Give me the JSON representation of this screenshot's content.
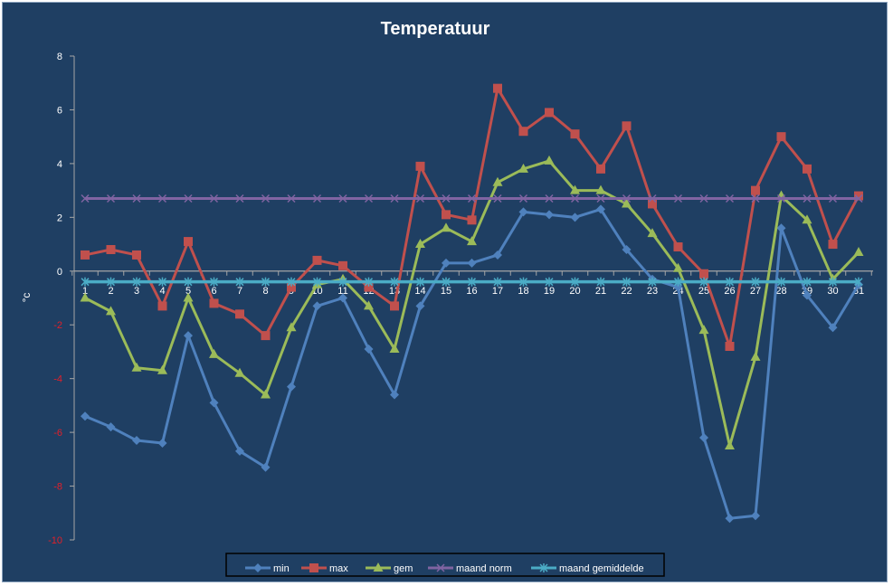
{
  "chart_data": {
    "type": "line",
    "title": "Temperatuur",
    "xlabel": "",
    "ylabel": "°c",
    "ylim": [
      -10,
      8
    ],
    "yticks": [
      8,
      6,
      4,
      2,
      0,
      -2,
      -4,
      -6,
      -8,
      -10
    ],
    "categories": [
      "1",
      "2",
      "3",
      "4",
      "5",
      "6",
      "7",
      "8",
      "9",
      "10",
      "11",
      "12",
      "13",
      "14",
      "15",
      "16",
      "17",
      "18",
      "19",
      "20",
      "21",
      "22",
      "23",
      "24",
      "25",
      "26",
      "27",
      "28",
      "29",
      "30",
      "31"
    ],
    "grid": false,
    "legend": "bottom",
    "colors": {
      "background": "#1f3f63",
      "positive_tick": "#ffffff",
      "negative_tick": "#e0202a",
      "axis": "#a6a6a6"
    },
    "series": [
      {
        "name": "min",
        "color": "#4f81bd",
        "marker": "diamond",
        "values": [
          -5.4,
          -5.8,
          -6.3,
          -6.4,
          -2.4,
          -4.9,
          -6.7,
          -7.3,
          -4.3,
          -1.3,
          -1.0,
          -2.9,
          -4.6,
          -1.3,
          0.3,
          0.3,
          0.6,
          2.2,
          2.1,
          2.0,
          2.3,
          0.8,
          -0.3,
          -0.6,
          -6.2,
          -9.2,
          -9.1,
          1.6,
          -0.9,
          -2.1,
          -0.5
        ]
      },
      {
        "name": "max",
        "color": "#c0504d",
        "marker": "square",
        "values": [
          0.6,
          0.8,
          0.6,
          -1.3,
          1.1,
          -1.2,
          -1.6,
          -2.4,
          -0.6,
          0.4,
          0.2,
          -0.6,
          -1.3,
          3.9,
          2.1,
          1.9,
          6.8,
          5.2,
          5.9,
          5.1,
          3.8,
          5.4,
          2.5,
          0.9,
          -0.1,
          -2.8,
          3.0,
          5.0,
          3.8,
          1.0,
          2.8
        ]
      },
      {
        "name": "gem",
        "color": "#9bbb59",
        "marker": "triangle",
        "values": [
          -1.0,
          -1.5,
          -3.6,
          -3.7,
          -1.0,
          -3.1,
          -3.8,
          -4.6,
          -2.1,
          -0.5,
          -0.3,
          -1.3,
          -2.9,
          1.0,
          1.6,
          1.1,
          3.3,
          3.8,
          4.1,
          3.0,
          3.0,
          2.5,
          1.4,
          0.1,
          -2.2,
          -6.5,
          -3.2,
          2.8,
          1.9,
          -0.3,
          0.7
        ]
      },
      {
        "name": "maand norm",
        "color": "#8064a2",
        "marker": "x",
        "values": [
          2.7,
          2.7,
          2.7,
          2.7,
          2.7,
          2.7,
          2.7,
          2.7,
          2.7,
          2.7,
          2.7,
          2.7,
          2.7,
          2.7,
          2.7,
          2.7,
          2.7,
          2.7,
          2.7,
          2.7,
          2.7,
          2.7,
          2.7,
          2.7,
          2.7,
          2.7,
          2.7,
          2.7,
          2.7,
          2.7,
          2.7
        ]
      },
      {
        "name": "maand gemiddelde",
        "color": "#4bacc6",
        "marker": "asterisk",
        "values": [
          -0.4,
          -0.4,
          -0.4,
          -0.4,
          -0.4,
          -0.4,
          -0.4,
          -0.4,
          -0.4,
          -0.4,
          -0.4,
          -0.4,
          -0.4,
          -0.4,
          -0.4,
          -0.4,
          -0.4,
          -0.4,
          -0.4,
          -0.4,
          -0.4,
          -0.4,
          -0.4,
          -0.4,
          -0.4,
          -0.4,
          -0.4,
          -0.4,
          -0.4,
          -0.4,
          -0.4
        ]
      }
    ]
  }
}
